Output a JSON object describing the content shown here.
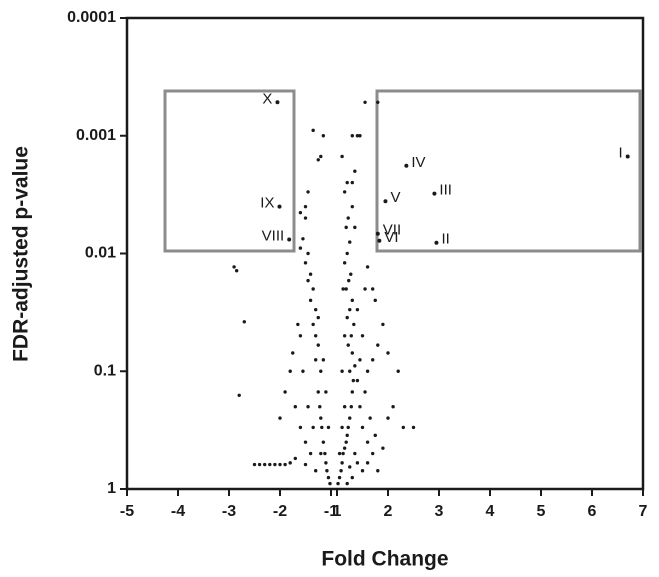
{
  "chart_data": {
    "type": "scatter",
    "x_label": "Fold Change",
    "y_label": "FDR-adjusted p-value",
    "color": "#1a1a1a",
    "xlim": [
      -5,
      7
    ],
    "xticks": [
      -5,
      -4,
      -3,
      -2,
      -1,
      1,
      2,
      3,
      4,
      5,
      6,
      7
    ],
    "xbreak": [
      -1,
      1
    ],
    "ylim": [
      0.0001,
      1
    ],
    "yticks": [
      0.0001,
      0.001,
      0.01,
      0.1,
      1
    ],
    "ylog": true,
    "yinverted": true,
    "x": [
      1.02,
      1.05,
      1.08,
      1.1,
      1.12,
      1.15,
      1.18,
      1.2,
      1.22,
      1.25,
      1.28,
      1.3,
      1.32,
      1.25,
      1.35,
      1.3,
      1.22,
      1.28,
      1.33,
      1.2,
      1.25,
      1.3,
      1.18,
      1.23,
      1.27,
      1.15,
      1.2,
      1.25,
      1.18,
      1.22,
      1.3,
      1.15,
      1.2,
      1.35,
      1.4,
      1.45,
      1.3,
      1.1,
      1.55,
      1.8,
      1.5,
      1.6,
      1.7,
      1.4,
      1.5,
      1.3,
      1.2,
      1.45,
      1.55,
      1.6,
      1.7,
      1.5,
      1.4,
      1.65,
      1.75,
      1.9,
      2.0,
      2.1,
      2.2,
      2.3,
      2.5,
      1.8,
      1.9,
      2.0,
      1.55,
      1.6,
      1.7,
      1.75,
      1.3,
      1.35,
      1.1,
      1.05,
      1.15,
      1.4,
      1.45,
      1.35,
      1.25,
      1.6,
      1.8,
      1.1,
      1.15,
      1.12,
      -1.02,
      -1.05,
      -1.08,
      -1.1,
      -1.12,
      -1.15,
      -1.18,
      -1.2,
      -1.22,
      -1.25,
      -1.2,
      -1.3,
      -1.25,
      -1.3,
      -1.35,
      -1.3,
      -1.4,
      -1.35,
      -1.45,
      -1.4,
      -1.5,
      -1.45,
      -1.6,
      -1.55,
      -1.5,
      -1.5,
      -1.45,
      -1.2,
      -1.25,
      -1.35,
      -1.15,
      -1.6,
      -2.9,
      -2.85,
      -2.7,
      -2.8,
      -2.5,
      -2.4,
      -2.3,
      -2.2,
      -2.1,
      -2.0,
      -1.9,
      -1.8,
      -1.7,
      -1.5,
      -1.6,
      -1.7,
      -1.8,
      -1.75,
      -1.9,
      -2.0,
      -1.5,
      -1.4,
      -1.3,
      -1.35,
      -1.45,
      -1.55,
      -1.65,
      -1.1,
      -1.15,
      -1.05,
      -1.2,
      -1.25,
      -1.6
    ],
    "values": [
      0.9,
      0.8,
      0.7,
      0.6,
      0.5,
      0.45,
      0.4,
      0.35,
      0.3,
      0.25,
      0.2,
      0.15,
      0.12,
      0.1,
      0.09,
      0.07,
      0.06,
      0.05,
      0.04,
      0.035,
      0.03,
      0.025,
      0.02,
      0.017,
      0.015,
      0.012,
      0.01,
      0.008,
      0.006,
      0.005,
      0.004,
      0.003,
      0.0025,
      0.002,
      0.001,
      0.001,
      0.001,
      0.0015,
      0.00052,
      0.00052,
      0.3,
      0.4,
      0.5,
      0.6,
      0.7,
      0.8,
      0.9,
      0.2,
      0.15,
      0.1,
      0.08,
      0.05,
      0.03,
      0.25,
      0.35,
      0.45,
      0.25,
      0.2,
      0.1,
      0.3,
      0.3,
      0.06,
      0.04,
      0.07,
      0.02,
      0.013,
      0.02,
      0.025,
      0.0025,
      0.006,
      0.3,
      0.5,
      0.2,
      0.12,
      0.08,
      0.5,
      0.65,
      0.6,
      0.7,
      0.1,
      0.05,
      0.02,
      0.9,
      0.8,
      0.7,
      0.6,
      0.5,
      0.4,
      0.3,
      0.25,
      0.2,
      0.15,
      0.1,
      0.08,
      0.06,
      0.05,
      0.04,
      0.03,
      0.025,
      0.02,
      0.017,
      0.015,
      0.012,
      0.01,
      0.009,
      0.0075,
      0.005,
      0.004,
      0.003,
      0.0015,
      0.0016,
      0.0009,
      0.001,
      0.0045,
      0.013,
      0.014,
      0.038,
      0.16,
      0.62,
      0.62,
      0.62,
      0.62,
      0.62,
      0.62,
      0.62,
      0.6,
      0.55,
      0.62,
      0.3,
      0.2,
      0.1,
      0.07,
      0.15,
      0.25,
      0.4,
      0.5,
      0.7,
      0.3,
      0.2,
      0.1,
      0.04,
      0.15,
      0.08,
      0.3,
      0.5,
      0.035,
      0.05
    ],
    "annotations": [
      {
        "text": "I",
        "x": 6.7,
        "y": 0.0015
      },
      {
        "text": "II",
        "x": 2.95,
        "y": 0.0081
      },
      {
        "text": "III",
        "x": 2.91,
        "y": 0.0031
      },
      {
        "text": "IV",
        "x": 2.36,
        "y": 0.0018
      },
      {
        "text": "V",
        "x": 1.95,
        "y": 0.0036
      },
      {
        "text": "VI",
        "x": 1.83,
        "y": 0.0078
      },
      {
        "text": "VII",
        "x": 1.8,
        "y": 0.0068
      },
      {
        "text": "VIII",
        "x": -1.82,
        "y": 0.0076
      },
      {
        "text": "IX",
        "x": -2.01,
        "y": 0.004
      },
      {
        "text": "X",
        "x": -2.05,
        "y": 0.00052
      }
    ]
  }
}
